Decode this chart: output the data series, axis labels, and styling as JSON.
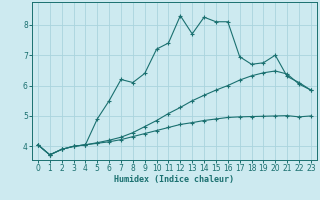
{
  "xlabel": "Humidex (Indice chaleur)",
  "bg_color": "#cdeaf0",
  "grid_color": "#aad4dd",
  "line_color": "#1a7070",
  "xlim": [
    -0.5,
    23.5
  ],
  "ylim": [
    3.55,
    8.75
  ],
  "xticks": [
    0,
    1,
    2,
    3,
    4,
    5,
    6,
    7,
    8,
    9,
    10,
    11,
    12,
    13,
    14,
    15,
    16,
    17,
    18,
    19,
    20,
    21,
    22,
    23
  ],
  "yticks": [
    4,
    5,
    6,
    7,
    8
  ],
  "line1_x": [
    0,
    1,
    2,
    3,
    4,
    5,
    6,
    7,
    8,
    9,
    10,
    11,
    12,
    13,
    14,
    15,
    16,
    17,
    18,
    19,
    20,
    21,
    22,
    23
  ],
  "line1_y": [
    4.05,
    3.72,
    3.9,
    4.0,
    4.05,
    4.1,
    4.15,
    4.22,
    4.32,
    4.42,
    4.52,
    4.62,
    4.72,
    4.78,
    4.85,
    4.9,
    4.95,
    4.97,
    4.98,
    4.99,
    5.0,
    5.01,
    4.97,
    5.0
  ],
  "line2_x": [
    0,
    1,
    2,
    3,
    4,
    5,
    6,
    7,
    8,
    9,
    10,
    11,
    12,
    13,
    14,
    15,
    16,
    17,
    18,
    19,
    20,
    21,
    22,
    23
  ],
  "line2_y": [
    4.05,
    3.72,
    3.9,
    4.0,
    4.05,
    4.12,
    4.2,
    4.3,
    4.45,
    4.65,
    4.85,
    5.08,
    5.28,
    5.5,
    5.68,
    5.85,
    6.0,
    6.18,
    6.32,
    6.42,
    6.48,
    6.38,
    6.05,
    5.85
  ],
  "line3_x": [
    0,
    1,
    2,
    3,
    4,
    5,
    6,
    7,
    8,
    9,
    10,
    11,
    12,
    13,
    14,
    15,
    16,
    17,
    18,
    19,
    20,
    21,
    22,
    23
  ],
  "line3_y": [
    4.05,
    3.72,
    3.9,
    4.0,
    4.05,
    4.9,
    5.5,
    6.2,
    6.1,
    6.4,
    7.2,
    7.4,
    8.3,
    7.7,
    8.25,
    8.1,
    8.1,
    6.95,
    6.7,
    6.75,
    7.0,
    6.3,
    6.1,
    5.85
  ]
}
